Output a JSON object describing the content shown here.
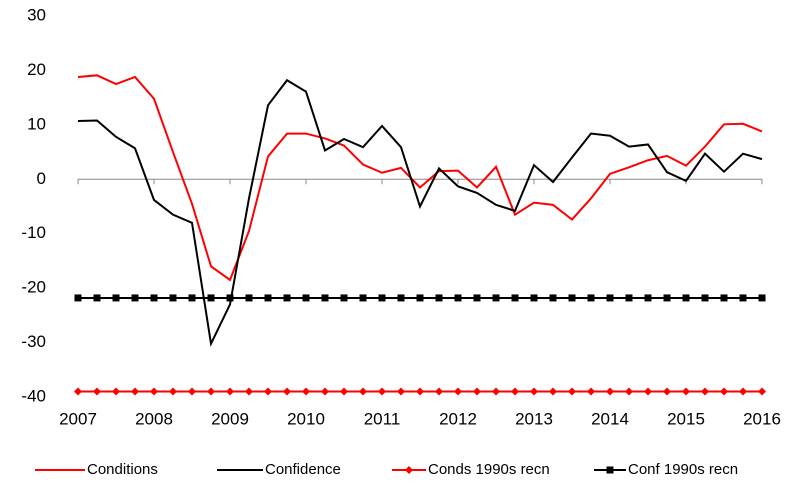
{
  "chart_data": {
    "type": "line",
    "x": [
      2007,
      2007.25,
      2007.5,
      2007.75,
      2008,
      2008.25,
      2008.5,
      2008.75,
      2009,
      2009.25,
      2009.5,
      2009.75,
      2010,
      2010.25,
      2010.5,
      2010.75,
      2011,
      2011.25,
      2011.5,
      2011.75,
      2012,
      2012.25,
      2012.5,
      2012.75,
      2013,
      2013.25,
      2013.5,
      2013.75,
      2014,
      2014.25,
      2014.5,
      2014.75,
      2015,
      2015.25,
      2015.5,
      2015.75,
      2016
    ],
    "series": [
      {
        "name": "Conditions",
        "color": "#ff0000",
        "marker": "none",
        "values": [
          18.8,
          19.1,
          17.5,
          18.8,
          14.8,
          5,
          -4.5,
          -16,
          -18.5,
          -9.5,
          4.2,
          8.4,
          8.4,
          7.5,
          6.2,
          2.7,
          1.2,
          2.1,
          -1.5,
          1.5,
          1.6,
          -1.5,
          2.3,
          -6.5,
          -4.3,
          -4.7,
          -7.4,
          -3.5,
          1,
          2.2,
          3.5,
          4.3,
          2.5,
          6,
          10.1,
          10.2,
          8.8
        ]
      },
      {
        "name": "Confidence",
        "color": "#000000",
        "marker": "none",
        "values": [
          10.7,
          10.8,
          7.8,
          5.7,
          -3.8,
          -6.5,
          -8,
          -30.2,
          -23,
          -3.5,
          13.6,
          18.2,
          16.1,
          5.3,
          7.4,
          5.9,
          9.8,
          5.9,
          -5,
          2,
          -1.3,
          -2.5,
          -4.7,
          -5.8,
          2.6,
          -0.5,
          4,
          8.4,
          8,
          6,
          6.4,
          1.3,
          -0.3,
          4.7,
          1.4,
          4.7,
          3.7
        ]
      },
      {
        "name": "Conds 1990s recn",
        "color": "#ff0000",
        "marker": "diamond",
        "values": [
          -39,
          -39,
          -39,
          -39,
          -39,
          -39,
          -39,
          -39,
          -39,
          -39,
          -39,
          -39,
          -39,
          -39,
          -39,
          -39,
          -39,
          -39,
          -39,
          -39,
          -39,
          -39,
          -39,
          -39,
          -39,
          -39,
          -39,
          -39,
          -39,
          -39,
          -39,
          -39,
          -39,
          -39,
          -39,
          -39,
          -39
        ]
      },
      {
        "name": "Conf 1990s recn",
        "color": "#000000",
        "marker": "square",
        "values": [
          -21.8,
          -21.8,
          -21.8,
          -21.8,
          -21.8,
          -21.8,
          -21.8,
          -21.8,
          -21.8,
          -21.8,
          -21.8,
          -21.8,
          -21.8,
          -21.8,
          -21.8,
          -21.8,
          -21.8,
          -21.8,
          -21.8,
          -21.8,
          -21.8,
          -21.8,
          -21.8,
          -21.8,
          -21.8,
          -21.8,
          -21.8,
          -21.8,
          -21.8,
          -21.8,
          -21.8,
          -21.8,
          -21.8,
          -21.8,
          -21.8,
          -21.8,
          -21.8
        ]
      }
    ],
    "xlim": [
      2007,
      2016
    ],
    "xticks": [
      2007,
      2008,
      2009,
      2010,
      2011,
      2012,
      2013,
      2014,
      2015,
      2016
    ],
    "ylim": [
      -40,
      30
    ],
    "yticks": [
      -40,
      -30,
      -20,
      -10,
      0,
      10,
      20,
      30
    ],
    "grid": false,
    "legend": "bottom"
  }
}
